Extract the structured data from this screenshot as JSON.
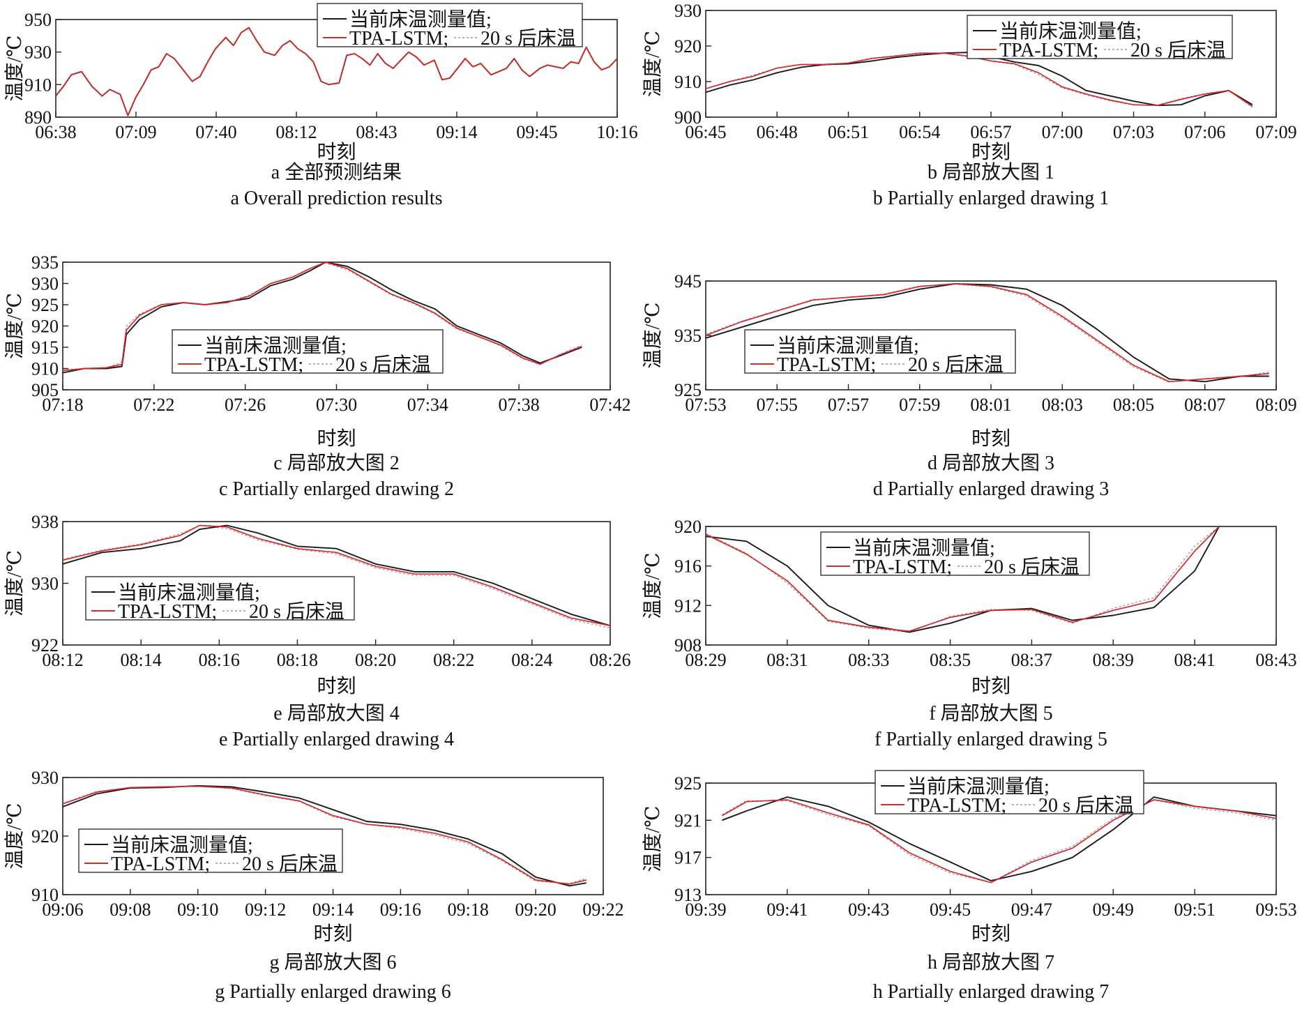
{
  "legend": {
    "measured": "当前床温测量值;",
    "model": "TPA-LSTM;",
    "future": "20 s 后床温"
  },
  "colors": {
    "measured": "#1a1a1a",
    "model": "#d42a2a",
    "future": "#9a9a9a"
  },
  "chart_data": [
    {
      "id": "a",
      "type": "line",
      "ylabel": "温度/℃",
      "xlabel": "时刻",
      "caption_cn": "a  全部预测结果",
      "caption_en": "a  Overall prediction results",
      "ylim": [
        890,
        950
      ],
      "yticks": [
        "890",
        "910",
        "930",
        "950"
      ],
      "xlim": [
        0,
        218
      ],
      "xticks": [
        "06:38",
        "07:09",
        "07:40",
        "08:12",
        "08:43",
        "09:14",
        "09:45",
        "10:16"
      ],
      "legend_position": "top-center",
      "x": [
        0,
        3,
        6,
        10,
        14,
        18,
        21,
        25,
        28,
        31,
        34,
        37,
        40,
        43,
        46,
        50,
        53,
        56,
        59,
        62,
        66,
        69,
        72,
        75,
        78,
        81,
        85,
        88,
        91,
        94,
        97,
        100,
        103,
        106,
        110,
        113,
        116,
        119,
        122,
        125,
        128,
        131,
        134,
        137,
        140,
        143,
        147,
        150,
        153,
        156,
        159,
        162,
        165,
        169,
        172,
        175,
        178,
        181,
        184,
        188,
        191,
        194,
        197,
        200,
        203,
        206,
        209,
        212,
        215,
        218
      ],
      "series": [
        {
          "name": "当前床温测量值",
          "values": [
            903,
            909,
            916,
            918,
            909,
            903,
            907,
            904,
            891,
            902,
            910,
            919,
            921,
            929,
            926,
            918,
            912,
            915,
            924,
            932,
            939,
            934,
            942,
            945,
            937,
            930,
            928,
            934,
            937,
            932,
            929,
            924,
            912,
            910,
            911,
            928,
            929,
            926,
            922,
            929,
            923,
            920,
            925,
            930,
            927,
            922,
            925,
            913,
            914,
            920,
            926,
            921,
            923,
            916,
            918,
            920,
            926,
            919,
            915,
            920,
            922,
            921,
            920,
            924,
            923,
            933,
            924,
            919,
            921,
            926
          ]
        },
        {
          "name": "TPA-LSTM",
          "values": [
            903,
            909,
            916,
            918,
            909,
            903,
            907,
            904,
            891,
            902,
            910,
            919,
            921,
            929,
            926,
            918,
            912,
            915,
            924,
            932,
            939,
            934,
            942,
            945,
            937,
            930,
            928,
            934,
            937,
            932,
            929,
            924,
            912,
            910,
            911,
            928,
            929,
            926,
            922,
            929,
            923,
            920,
            925,
            930,
            927,
            922,
            925,
            913,
            914,
            920,
            926,
            921,
            923,
            916,
            918,
            920,
            926,
            919,
            915,
            920,
            922,
            921,
            920,
            924,
            923,
            933,
            924,
            919,
            921,
            926
          ]
        }
      ]
    },
    {
      "id": "b",
      "type": "line",
      "ylabel": "温度/℃",
      "xlabel": "时刻",
      "caption_cn": "b  局部放大图 1",
      "caption_en": "b  Partially enlarged drawing 1",
      "ylim": [
        900,
        930
      ],
      "yticks": [
        "900",
        "910",
        "920",
        "930"
      ],
      "xlim": [
        0,
        24
      ],
      "xticks": [
        "06:45",
        "06:48",
        "06:51",
        "06:54",
        "06:57",
        "07:00",
        "07:03",
        "07:06",
        "07:09"
      ],
      "legend_position": "top-right",
      "x": [
        0,
        1,
        2,
        3,
        4,
        5,
        6,
        7,
        8,
        9,
        10,
        11,
        12,
        13,
        14,
        15,
        16,
        17,
        18,
        19,
        20,
        21,
        22,
        23
      ],
      "series": [
        {
          "name": "当前床温测量值",
          "values": [
            907,
            909,
            910.5,
            912.5,
            914,
            914.8,
            915,
            915.8,
            916.8,
            917.5,
            918,
            918.2,
            917,
            915.5,
            914.5,
            911.5,
            907.5,
            906,
            904.5,
            903.3,
            903.5,
            906,
            907.5,
            903.5
          ]
        },
        {
          "name": "TPA-LSTM",
          "values": [
            908,
            910,
            911.5,
            913.8,
            914.8,
            914.8,
            915.2,
            916.5,
            917.2,
            918,
            918,
            917.2,
            915.8,
            915,
            912.5,
            908.5,
            906.5,
            904.8,
            903.5,
            903.3,
            905,
            906.5,
            907.5,
            903
          ]
        },
        {
          "name": "20 s 后床温",
          "values": [
            908,
            910,
            911.8,
            913.8,
            914.8,
            914.6,
            915.3,
            916.6,
            917.3,
            917.8,
            918,
            917,
            915.8,
            914.8,
            912,
            908.2,
            906.3,
            904.6,
            903.4,
            903.4,
            905.2,
            906.6,
            907.5,
            902.8
          ]
        }
      ]
    },
    {
      "id": "c",
      "type": "line",
      "ylabel": "温度/℃",
      "xlabel": "时刻",
      "caption_cn": "c  局部放大图 2",
      "caption_en": "c  Partially enlarged drawing 2",
      "ylim": [
        905,
        935
      ],
      "yticks": [
        "905",
        "910",
        "915",
        "920",
        "925",
        "930",
        "935"
      ],
      "xlim": [
        0,
        25
      ],
      "xticks": [
        "07:18",
        "07:22",
        "07:26",
        "07:30",
        "07:34",
        "07:38",
        "07:42"
      ],
      "legend_position": "center-left",
      "x": [
        0,
        1,
        2,
        2.7,
        2.9,
        3.5,
        4.5,
        5.5,
        6.5,
        7.5,
        8.5,
        9.5,
        10.5,
        11.3,
        12,
        13,
        14,
        15,
        16,
        17,
        18,
        19,
        20,
        21,
        21.8,
        22.7,
        23.7
      ],
      "series": [
        {
          "name": "当前床温测量值",
          "values": [
            909,
            910,
            910,
            910.5,
            918,
            921.5,
            924.5,
            925.5,
            925,
            925.7,
            926.5,
            929.5,
            931,
            933,
            935,
            934,
            931.5,
            928.5,
            926,
            924,
            920,
            918,
            916,
            913,
            911.3,
            913,
            915
          ]
        },
        {
          "name": "TPA-LSTM",
          "values": [
            909.5,
            910,
            910.2,
            911,
            919,
            922.5,
            925,
            925.5,
            925,
            925.5,
            927,
            930,
            931.5,
            933.5,
            935,
            933.5,
            930.5,
            927.5,
            925.5,
            923,
            919.5,
            917.5,
            915.5,
            912.5,
            911,
            913.2,
            915.2
          ]
        },
        {
          "name": "20 s 后床温",
          "values": [
            909.7,
            910,
            910.2,
            911.5,
            920,
            922.8,
            925.1,
            925.4,
            925,
            925.6,
            927.2,
            930,
            931.6,
            933.6,
            934.8,
            933.2,
            930.3,
            927.3,
            925.3,
            922.8,
            919.3,
            917.5,
            915.3,
            912.3,
            911,
            913.3,
            915.5
          ]
        }
      ]
    },
    {
      "id": "d",
      "type": "line",
      "ylabel": "温度/℃",
      "xlabel": "时刻",
      "caption_cn": "d  局部放大图 3",
      "caption_en": "d  Partially enlarged drawing 3",
      "ylim": [
        925,
        945
      ],
      "yticks": [
        "925",
        "935",
        "945"
      ],
      "xlim": [
        0,
        16
      ],
      "xticks": [
        "07:53",
        "07:55",
        "07:57",
        "07:59",
        "08:01",
        "08:03",
        "08:05",
        "08:07",
        "08:09"
      ],
      "legend_position": "center-left",
      "x": [
        0,
        1,
        2,
        3,
        4,
        5,
        6,
        7,
        8,
        9,
        10,
        11,
        12,
        13,
        14,
        15,
        15.8
      ],
      "series": [
        {
          "name": "当前床温测量值",
          "values": [
            934.5,
            936.5,
            938.5,
            940.5,
            941.5,
            942,
            943.5,
            944.5,
            944.3,
            943.5,
            940.5,
            936,
            931,
            927,
            926.5,
            927.5,
            927.5
          ]
        },
        {
          "name": "TPA-LSTM",
          "values": [
            935,
            937.5,
            939.5,
            941.5,
            942,
            942.5,
            944,
            944.5,
            944,
            942.5,
            938.5,
            934,
            929.5,
            926.5,
            927,
            927.5,
            928
          ]
        },
        {
          "name": "20 s 后床温",
          "values": [
            935.2,
            937.6,
            939.6,
            941.6,
            942,
            942.6,
            944.1,
            944.4,
            943.9,
            942.2,
            938.2,
            933.7,
            929.2,
            926.4,
            927,
            927.4,
            928.3
          ]
        }
      ]
    },
    {
      "id": "e",
      "type": "line",
      "ylabel": "温度/℃",
      "xlabel": "时刻",
      "caption_cn": "e  局部放大图 4",
      "caption_en": "e  Partially enlarged drawing 4",
      "ylim": [
        922,
        938
      ],
      "yticks": [
        "922",
        "930",
        "938"
      ],
      "xlim": [
        0,
        14
      ],
      "xticks": [
        "08:12",
        "08:14",
        "08:16",
        "08:18",
        "08:20",
        "08:22",
        "08:24",
        "08:26"
      ],
      "legend_position": "center-left",
      "x": [
        0,
        1,
        2,
        3,
        3.5,
        4.2,
        5,
        6,
        7,
        8,
        9,
        10,
        11,
        12,
        13,
        14
      ],
      "series": [
        {
          "name": "当前床温测量值",
          "values": [
            932.5,
            934,
            934.5,
            935.5,
            937,
            937.5,
            936.5,
            934.8,
            934.5,
            932.5,
            931.5,
            931.5,
            930,
            928,
            926,
            924.5
          ]
        },
        {
          "name": "TPA-LSTM",
          "values": [
            933,
            934.2,
            935,
            936.2,
            937.5,
            937.3,
            935.8,
            934.5,
            934,
            932.2,
            931.2,
            931.2,
            929.5,
            927.5,
            925.5,
            924.5
          ]
        },
        {
          "name": "20 s 后床温",
          "values": [
            933.1,
            934.3,
            935.1,
            936.4,
            937.5,
            937.1,
            935.6,
            934.4,
            933.8,
            932,
            931,
            931,
            929.3,
            927.3,
            925.3,
            924.2
          ]
        }
      ]
    },
    {
      "id": "f",
      "type": "line",
      "ylabel": "温度/℃",
      "xlabel": "时刻",
      "caption_cn": "f  局部放大图 5",
      "caption_en": "f  Partially enlarged drawing 5",
      "ylim": [
        908,
        920
      ],
      "yticks": [
        "908",
        "912",
        "916",
        "920"
      ],
      "xlim": [
        0,
        14
      ],
      "xticks": [
        "08:29",
        "08:31",
        "08:33",
        "08:35",
        "08:37",
        "08:39",
        "08:41",
        "08:43"
      ],
      "legend_position": "top-center",
      "x": [
        0,
        1,
        2,
        3,
        4,
        5,
        6,
        7,
        8,
        9,
        10,
        11,
        12,
        12.6
      ],
      "series": [
        {
          "name": "当前床温测量值",
          "values": [
            919,
            918.5,
            916,
            912,
            910,
            909.3,
            910.2,
            911.5,
            911.7,
            910.5,
            911,
            911.8,
            915.5,
            920
          ]
        },
        {
          "name": "TPA-LSTM",
          "values": [
            919.2,
            917.2,
            914.5,
            910.5,
            909.8,
            909.4,
            910.8,
            911.5,
            911.6,
            910.3,
            911.5,
            912.5,
            917.5,
            920
          ]
        },
        {
          "name": "20 s 后床温",
          "values": [
            919.3,
            917.3,
            914.3,
            910.4,
            909.7,
            909.3,
            910.9,
            911.6,
            911.5,
            910.2,
            911.7,
            912.8,
            918,
            920
          ]
        }
      ]
    },
    {
      "id": "g",
      "type": "line",
      "ylabel": "温度/℃",
      "xlabel": "时刻",
      "caption_cn": "g  局部放大图 6",
      "caption_en": "g  Partially enlarged drawing 6",
      "ylim": [
        910,
        930
      ],
      "yticks": [
        "910",
        "920",
        "930"
      ],
      "xlim": [
        0,
        16
      ],
      "xticks": [
        "09:06",
        "09:08",
        "09:10",
        "09:12",
        "09:14",
        "09:16",
        "09:18",
        "09:20",
        "09:22"
      ],
      "legend_position": "bottom-left",
      "x": [
        0,
        1,
        2,
        3,
        4,
        5,
        6,
        7,
        8,
        9,
        10,
        11,
        12,
        13,
        14,
        15,
        15.5
      ],
      "series": [
        {
          "name": "当前床温测量值",
          "values": [
            925,
            927.2,
            928.2,
            928.3,
            928.6,
            928.4,
            927.5,
            926.5,
            924.5,
            922.5,
            922,
            921,
            919.5,
            917,
            913,
            911.5,
            912
          ]
        },
        {
          "name": "TPA-LSTM",
          "values": [
            925.5,
            927.5,
            928.3,
            928.4,
            928.5,
            928.2,
            927,
            926,
            923.5,
            922,
            921.5,
            920.5,
            919,
            916,
            912.5,
            911.8,
            912.5
          ]
        },
        {
          "name": "20 s 后床温",
          "values": [
            925.6,
            927.6,
            928.3,
            928.4,
            928.5,
            928.1,
            926.9,
            925.9,
            923.3,
            922,
            921.3,
            920.2,
            918.7,
            915.8,
            912.3,
            911.9,
            912.8
          ]
        }
      ]
    },
    {
      "id": "h",
      "type": "line",
      "ylabel": "温度/℃",
      "xlabel": "时刻",
      "caption_cn": "h  局部放大图 7",
      "caption_en": "h  Partially enlarged drawing 7",
      "ylim": [
        913,
        925
      ],
      "yticks": [
        "913",
        "917",
        "921",
        "925"
      ],
      "xlim": [
        0,
        14
      ],
      "xticks": [
        "09:39",
        "09:41",
        "09:43",
        "09:45",
        "09:47",
        "09:49",
        "09:51",
        "09:53"
      ],
      "legend_position": "top-center",
      "x": [
        0.4,
        1,
        2,
        3,
        4,
        5,
        6,
        7,
        8,
        9,
        10,
        11,
        12,
        13,
        14
      ],
      "series": [
        {
          "name": "当前床温测量值",
          "values": [
            921,
            922,
            923.5,
            922.5,
            920.8,
            918.5,
            916.5,
            914.5,
            915.5,
            917,
            920,
            923.5,
            922.5,
            922,
            921.5
          ]
        },
        {
          "name": "TPA-LSTM",
          "values": [
            921.5,
            923,
            923.2,
            921.8,
            920.5,
            917.5,
            915.5,
            914.3,
            916.5,
            918,
            921,
            923.2,
            922.5,
            922,
            921.2
          ]
        },
        {
          "name": "20 s 后床温",
          "values": [
            921.6,
            923.1,
            923.1,
            921.6,
            920.4,
            917.3,
            915.3,
            914.3,
            916.7,
            918.2,
            921.2,
            923.2,
            922.3,
            921.8,
            921
          ]
        }
      ]
    }
  ]
}
